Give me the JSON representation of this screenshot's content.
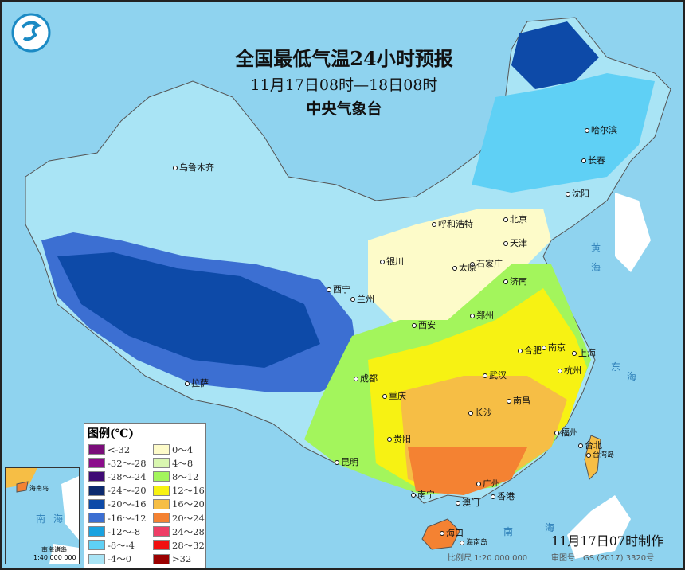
{
  "title": "全国最低气温24小时预报",
  "subtitle": "11月17日08时—18日08时",
  "issuer": "中央气象台",
  "legend": {
    "title": "图例(℃)",
    "items": [
      {
        "label": "<-32",
        "color": "#7a0d7a"
      },
      {
        "label": "-32～-28",
        "color": "#8b0c8b"
      },
      {
        "label": "-28～-24",
        "color": "#3f0a75"
      },
      {
        "label": "-24～-20",
        "color": "#0c2a6e"
      },
      {
        "label": "-20～-16",
        "color": "#0d4aa8"
      },
      {
        "label": "-16～-12",
        "color": "#3c6fd2"
      },
      {
        "label": "-12～-8",
        "color": "#19a2e0"
      },
      {
        "label": "-8～-4",
        "color": "#5fd0f5"
      },
      {
        "label": "-4～0",
        "color": "#a9e4f5"
      },
      {
        "label": "0～4",
        "color": "#fdfbc9"
      },
      {
        "label": "4～8",
        "color": "#d9f7b0"
      },
      {
        "label": "8～12",
        "color": "#a3f55c"
      },
      {
        "label": "12～16",
        "color": "#f7f213"
      },
      {
        "label": "16～20",
        "color": "#f6be45"
      },
      {
        "label": "20～24",
        "color": "#f48232"
      },
      {
        "label": "24～28",
        "color": "#ee3d66"
      },
      {
        "label": "28～32",
        "color": "#f01010"
      },
      {
        "label": ">32",
        "color": "#9b0000"
      }
    ]
  },
  "cities": [
    "乌鲁木齐",
    "哈尔滨",
    "长春",
    "沈阳",
    "呼和浩特",
    "北京",
    "天津",
    "石家庄",
    "太原",
    "银川",
    "西宁",
    "兰州",
    "济南",
    "郑州",
    "西安",
    "合肥",
    "南京",
    "上海",
    "杭州",
    "成都",
    "重庆",
    "武汉",
    "长沙",
    "南昌",
    "拉萨",
    "贵阳",
    "福州",
    "台北",
    "昆明",
    "南宁",
    "广州",
    "澳门",
    "香港",
    "海口"
  ],
  "islands": [
    "海南岛",
    "台湾岛"
  ],
  "seas": [
    "黄",
    "海",
    "东",
    "海",
    "南",
    "海"
  ],
  "inset": {
    "labels": [
      "海南岛",
      "南",
      "海",
      "南海诸岛"
    ],
    "scale": "1:40 000 000"
  },
  "footer": {
    "made_time": "11月17日07时制作",
    "scale": "比例尺 1:20 000 000",
    "approval": "审图号：GS (2017) 3320号"
  }
}
